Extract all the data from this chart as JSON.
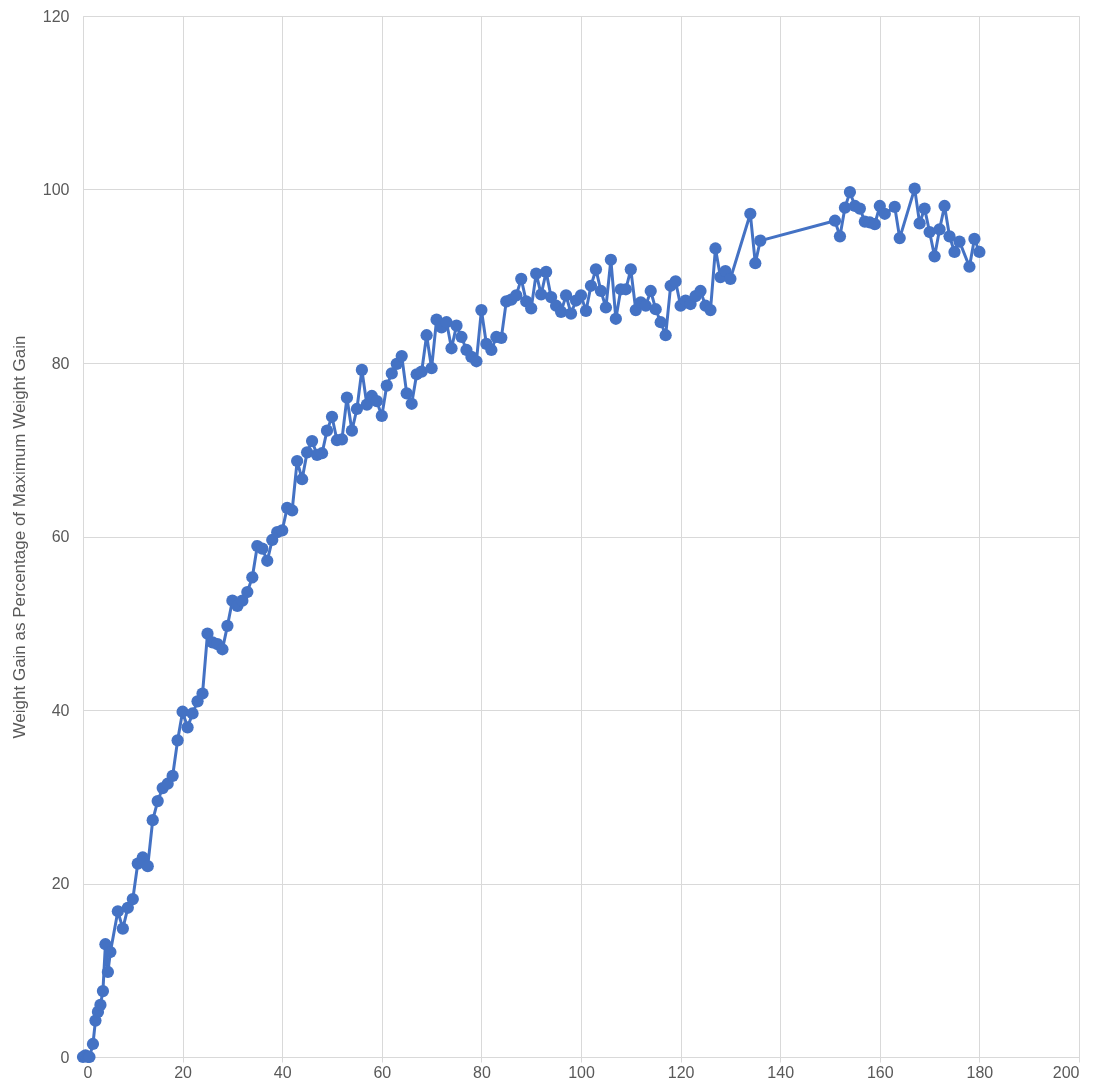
{
  "chart_data": {
    "type": "line",
    "ylabel": "Weight Gain as Percentage of Maximum Weight Gain",
    "x": [
      0,
      0.5,
      1,
      1.3,
      2,
      2.5,
      3,
      3.5,
      4,
      4.5,
      5,
      5.5,
      7,
      8,
      9,
      10,
      11,
      12,
      13,
      14,
      15,
      16,
      17,
      18,
      19,
      20,
      21,
      22,
      23,
      24,
      25,
      26,
      27,
      28,
      29,
      30,
      31,
      32,
      33,
      34,
      35,
      36,
      37,
      38,
      39,
      40,
      41,
      42,
      43,
      44,
      45,
      46,
      47,
      48,
      49,
      50,
      51,
      52,
      53,
      54,
      55,
      56,
      57,
      58,
      59,
      60,
      61,
      62,
      63,
      64,
      65,
      66,
      67,
      68,
      69,
      70,
      71,
      72,
      73,
      74,
      75,
      76,
      77,
      78,
      79,
      80,
      81,
      82,
      83,
      84,
      85,
      86,
      87,
      88,
      89,
      90,
      91,
      92,
      93,
      94,
      95,
      96,
      97,
      98,
      99,
      100,
      101,
      102,
      103,
      104,
      105,
      106,
      107,
      108,
      109,
      110,
      111,
      112,
      113,
      114,
      115,
      116,
      117,
      118,
      119,
      120,
      121,
      122,
      123,
      124,
      125,
      126,
      127,
      128,
      129,
      130,
      134,
      135,
      136,
      151,
      152,
      153,
      154,
      155,
      156,
      157,
      158,
      159,
      160,
      161,
      163,
      164,
      167,
      168,
      169,
      170,
      171,
      172,
      173,
      174,
      175,
      176,
      178,
      179,
      180
    ],
    "series": [
      {
        "color": "#4472c4",
        "values": [
          0,
          0.2,
          0,
          0,
          1.5,
          4.2,
          5.2,
          6,
          7.6,
          13,
          9.8,
          12.1,
          16.8,
          14.8,
          17.2,
          18.2,
          22.3,
          23,
          22,
          27.3,
          29.5,
          31,
          31.5,
          32.4,
          36.5,
          39.8,
          38,
          39.6,
          41,
          41.9,
          48.8,
          47.8,
          47.6,
          47,
          49.7,
          52.6,
          52,
          52.6,
          53.6,
          55.3,
          58.9,
          58.6,
          57.2,
          59.6,
          60.5,
          60.7,
          63.3,
          63,
          68.7,
          66.6,
          69.7,
          71,
          69.4,
          69.6,
          72.2,
          73.8,
          71.1,
          71.2,
          76,
          72.2,
          74.7,
          79.2,
          75.2,
          76.2,
          75.6,
          73.9,
          77.4,
          78.8,
          79.9,
          80.8,
          76.5,
          75.3,
          78.7,
          79,
          83.2,
          79.4,
          85,
          84.1,
          84.7,
          81.7,
          84.3,
          83,
          81.5,
          80.7,
          80.2,
          86.1,
          82.2,
          81.5,
          83,
          82.9,
          87.1,
          87.3,
          87.8,
          89.7,
          87.1,
          86.3,
          90.3,
          87.9,
          90.5,
          87.6,
          86.6,
          85.9,
          87.8,
          85.7,
          87.2,
          87.8,
          86,
          88.9,
          90.8,
          88.3,
          86.4,
          91.9,
          85.1,
          88.5,
          88.5,
          90.8,
          86.1,
          87,
          86.6,
          88.3,
          86.2,
          84.7,
          83.2,
          88.9,
          89.4,
          86.6,
          87.2,
          86.8,
          87.7,
          88.3,
          86.6,
          86.1,
          93.2,
          89.9,
          90.6,
          89.7,
          97.2,
          91.5,
          94.1,
          96.4,
          94.6,
          97.9,
          99.7,
          98.1,
          97.8,
          96.3,
          96.2,
          96,
          98.1,
          97.2,
          98,
          94.4,
          100.1,
          96.1,
          97.8,
          95.1,
          92.3,
          95.4,
          98.1,
          94.6,
          92.8,
          94,
          91.1,
          94.3,
          92.8
        ]
      }
    ],
    "xlim": [
      0,
      200
    ],
    "xticks": [
      0,
      20,
      40,
      60,
      80,
      100,
      120,
      140,
      160,
      180,
      200
    ],
    "ylim": [
      0,
      120
    ],
    "yticks": [
      0,
      20,
      40,
      60,
      80,
      100,
      120
    ],
    "grid": true,
    "marker": "circle",
    "line_style": "solid"
  }
}
